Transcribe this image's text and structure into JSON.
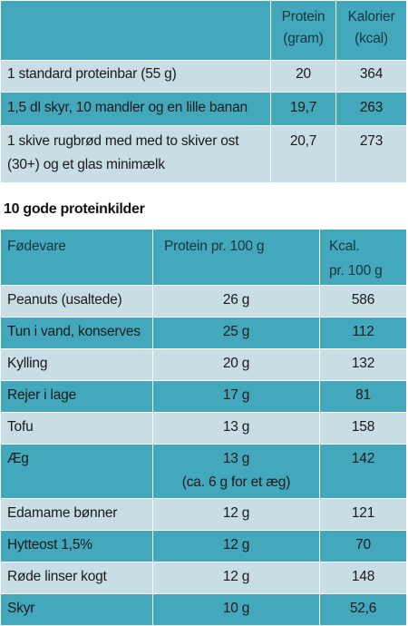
{
  "table1": {
    "headers": {
      "food": "",
      "protein": [
        "Protein",
        "(gram)"
      ],
      "calories": [
        "Kalorier",
        "(kcal)"
      ]
    },
    "rows": [
      {
        "food": [
          "1 standard proteinbar (55 g)"
        ],
        "protein": "20",
        "kcal": "364"
      },
      {
        "food": [
          "1,5 dl skyr, 10 mandler og en lille banan"
        ],
        "protein": "19,7",
        "kcal": "263"
      },
      {
        "food": [
          "1 skive rugbrød med med to skiver ost",
          "(30+) og et glas minimælk"
        ],
        "protein": "20,7",
        "kcal": "273"
      }
    ]
  },
  "section_title": "10 gode proteinkilder",
  "table2": {
    "headers": {
      "food": "Fødevare",
      "protein": "Protein pr. 100 g",
      "kcal": [
        "Kcal.",
        "pr. 100 g"
      ]
    },
    "rows": [
      {
        "food": "Peanuts (usaltede)",
        "protein": [
          "26 g"
        ],
        "kcal": "586"
      },
      {
        "food": "Tun i vand, konserves",
        "protein": [
          "25 g"
        ],
        "kcal": "112"
      },
      {
        "food": "Kylling",
        "protein": [
          "20 g"
        ],
        "kcal": "132"
      },
      {
        "food": "Rejer i lage",
        "protein": [
          "17 g"
        ],
        "kcal": "81"
      },
      {
        "food": "Tofu",
        "protein": [
          "13 g"
        ],
        "kcal": "158"
      },
      {
        "food": "Æg",
        "protein": [
          "13 g",
          "(ca. 6 g for et æg)"
        ],
        "kcal": "142"
      },
      {
        "food": "Edamame bønner",
        "protein": [
          "12 g"
        ],
        "kcal": "121"
      },
      {
        "food": "Hytteost 1,5%",
        "protein": [
          "12 g"
        ],
        "kcal": "70"
      },
      {
        "food": "Røde linser kogt",
        "protein": [
          "12 g"
        ],
        "kcal": "148"
      },
      {
        "food": "Skyr",
        "protein": [
          "10 g"
        ],
        "kcal": "52,6"
      }
    ]
  },
  "colors": {
    "dark_row": "#44a8bd",
    "light_row": "#c8dde4",
    "text": "#1a1a1a"
  }
}
